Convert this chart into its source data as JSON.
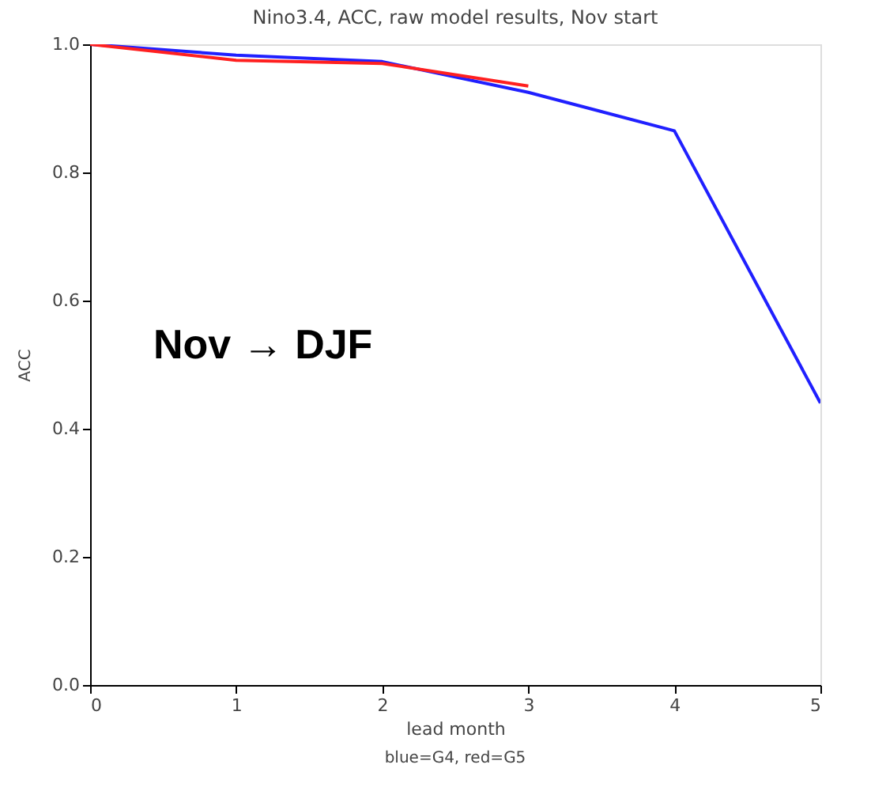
{
  "chart_data": {
    "type": "line",
    "title": "Nino3.4, ACC, raw model results, Nov start",
    "xlabel": "lead month",
    "ylabel": "ACC",
    "x": [
      0,
      1,
      2,
      3,
      4,
      5
    ],
    "series": [
      {
        "color": "#2020ff",
        "values": [
          1.0,
          0.983,
          0.973,
          0.925,
          0.865,
          0.44
        ]
      },
      {
        "color": "#ff2020",
        "x": [
          0,
          1,
          2,
          3
        ],
        "values": [
          1.0,
          0.975,
          0.97,
          0.935
        ]
      }
    ],
    "xlim": [
      0,
      5
    ],
    "xticks": [
      0,
      1,
      2,
      3,
      4,
      5
    ],
    "ylim": [
      0,
      1
    ],
    "yticks": [
      {
        "value": 0,
        "label": "0.0"
      },
      {
        "value": 0.2,
        "label": "0.2"
      },
      {
        "value": 0.4,
        "label": "0.4"
      },
      {
        "value": 0.6,
        "label": "0.6"
      },
      {
        "value": 0.8,
        "label": "0.8"
      },
      {
        "value": 1,
        "label": "1.0"
      }
    ],
    "annotations": [
      "Nov → DJF",
      "blue=G4, red=G5"
    ],
    "grid": false,
    "marker": "none",
    "line_style": "solid"
  }
}
